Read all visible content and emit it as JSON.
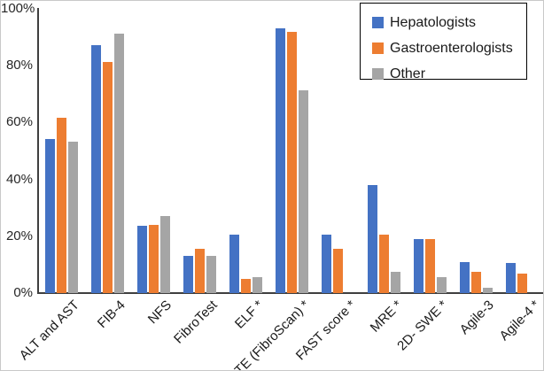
{
  "chart_data": {
    "type": "bar",
    "title": "",
    "xlabel": "",
    "ylabel": "",
    "ylim": [
      0,
      100
    ],
    "grid": false,
    "legend_position": "top-right",
    "axis_color": "#3f3f3f",
    "categories": [
      "ALT and AST",
      "FIB-4",
      "NFS",
      "FibroTest",
      "ELF *",
      "TE (FibroScan) *",
      "FAST score *",
      "MRE *",
      "2D- SWE *",
      "Agile-3",
      "Agile-4 *"
    ],
    "series": [
      {
        "name": "Hepatologists",
        "color": "#4472C4",
        "values": [
          54,
          87,
          23.5,
          13,
          20.5,
          93,
          20.5,
          38,
          19,
          11,
          10.5
        ]
      },
      {
        "name": "Gastroenterologists",
        "color": "#ED7D31",
        "values": [
          61.5,
          81,
          24,
          15.5,
          5,
          91.5,
          15.5,
          20.5,
          19,
          7.5,
          7
        ]
      },
      {
        "name": "Other",
        "color": "#A5A5A5",
        "values": [
          53,
          91,
          27,
          13,
          5.5,
          71,
          0,
          7.5,
          5.5,
          2,
          0
        ]
      }
    ],
    "yticks": [
      {
        "label": "0%",
        "value": 0
      },
      {
        "label": "20%",
        "value": 20
      },
      {
        "label": "40%",
        "value": 40
      },
      {
        "label": "60%",
        "value": 60
      },
      {
        "label": "80%",
        "value": 80
      },
      {
        "label": "100%",
        "value": 100
      }
    ]
  }
}
